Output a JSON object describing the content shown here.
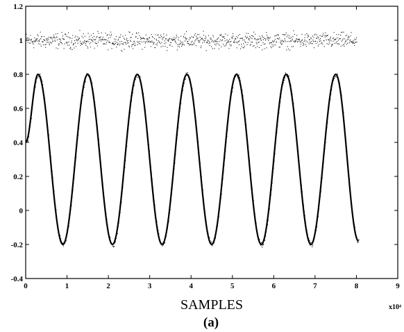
{
  "chart_data": {
    "type": "line",
    "title": "",
    "xlabel": "SAMPLES",
    "ylabel": "",
    "x_multiplier_label": "x10⁴",
    "caption": "(a)",
    "xlim": [
      0,
      9
    ],
    "ylim": [
      -0.4,
      1.2
    ],
    "x_ticks": [
      0,
      1,
      2,
      3,
      4,
      5,
      6,
      7,
      8,
      9
    ],
    "x_tick_labels": [
      "0",
      "1",
      "2",
      "3",
      "4",
      "5",
      "6",
      "7",
      "8",
      "9"
    ],
    "y_ticks": [
      -0.4,
      -0.2,
      0,
      0.2,
      0.4,
      0.6,
      0.8,
      1,
      1.2
    ],
    "y_tick_labels": [
      "-0.4",
      "-0.2",
      "0",
      "0.2",
      "0.4",
      "0.6",
      "0.8",
      "1",
      "1.2"
    ],
    "grid": false,
    "legend": "none",
    "series": [
      {
        "style": "dotted-noise",
        "description_value": "approx constant 1.0 with noise ±0.05",
        "x": [
          0,
          1,
          2,
          3,
          4,
          5,
          6,
          7,
          8
        ],
        "y": [
          1.0,
          1.0,
          1.0,
          1.0,
          1.0,
          1.0,
          1.0,
          1.0,
          1.0
        ]
      },
      {
        "style": "solid",
        "x": [
          0,
          0.3,
          0.9,
          1.5,
          2.1,
          2.7,
          3.3,
          3.9,
          4.5,
          5.1,
          5.7,
          6.3,
          6.9,
          7.5,
          8.05
        ],
        "y": [
          0.4,
          0.8,
          -0.2,
          0.8,
          -0.2,
          0.8,
          -0.2,
          0.8,
          -0.2,
          0.8,
          -0.2,
          0.8,
          -0.2,
          0.8,
          -0.18
        ]
      }
    ]
  }
}
